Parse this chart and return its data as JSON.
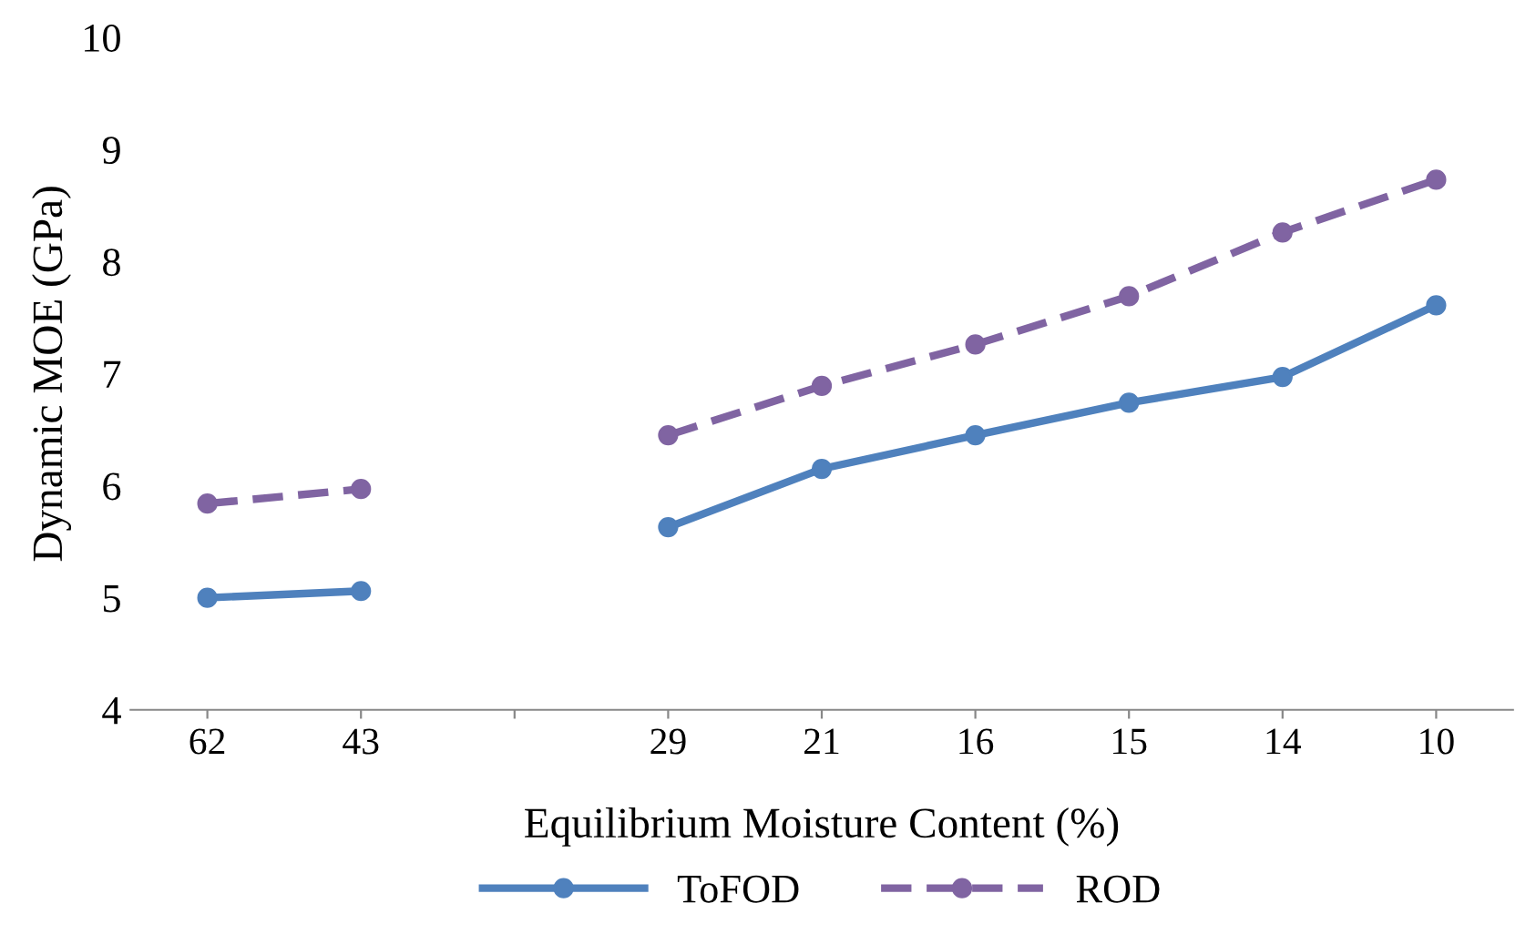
{
  "chart_data": {
    "type": "line",
    "xlabel": "Equilibrium Moisture Content (%)",
    "ylabel": "Dynamic MOE (GPa)",
    "categories": [
      "62",
      "43",
      null,
      "29",
      "21",
      "16",
      "15",
      "14",
      "10"
    ],
    "series": [
      {
        "name": "ToFOD",
        "color": "#4f81bd",
        "line_style": "solid",
        "values": [
          5.0,
          5.06,
          null,
          5.63,
          6.15,
          6.45,
          6.74,
          6.97,
          7.61
        ]
      },
      {
        "name": "ROD",
        "color": "#8064a2",
        "line_style": "dashed",
        "values": [
          5.84,
          5.97,
          null,
          6.45,
          6.89,
          7.26,
          7.69,
          8.26,
          8.73
        ]
      }
    ],
    "ylim": [
      4,
      10
    ],
    "yticks": [
      4,
      5,
      6,
      7,
      8,
      9,
      10
    ],
    "grid": false,
    "legend": "bottom",
    "marker": "circle"
  }
}
